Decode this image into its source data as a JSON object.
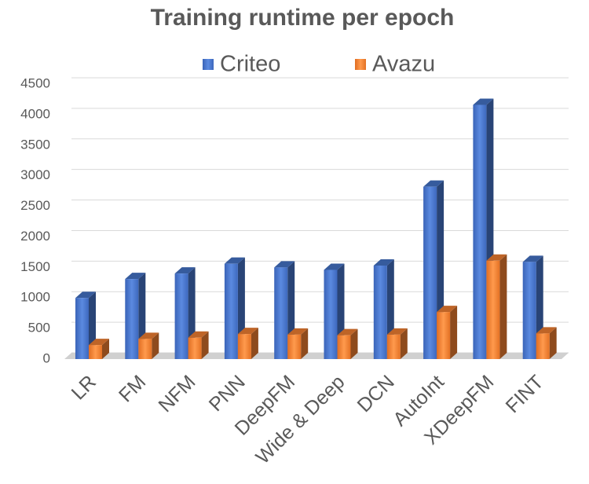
{
  "chart_data": {
    "type": "bar3d",
    "title": "Training runtime per epoch",
    "categories": [
      "LR",
      "FM",
      "NFM",
      "PNN",
      "DeepFM",
      "Wide & Deep",
      "DCN",
      "AutoInt",
      "XDeepFM",
      "FINT"
    ],
    "series": [
      {
        "name": "Criteo",
        "color": "#4472c4",
        "values": [
          1000,
          1310,
          1400,
          1560,
          1500,
          1460,
          1530,
          2820,
          4160,
          1590
        ]
      },
      {
        "name": "Avazu",
        "color": "#ed7d31",
        "values": [
          230,
          330,
          350,
          410,
          400,
          390,
          400,
          770,
          1610,
          420
        ]
      }
    ],
    "ylim": [
      0,
      4500
    ],
    "yticks": [
      0,
      500,
      1000,
      1500,
      2000,
      2500,
      3000,
      3500,
      4000,
      4500
    ],
    "grid": true
  }
}
